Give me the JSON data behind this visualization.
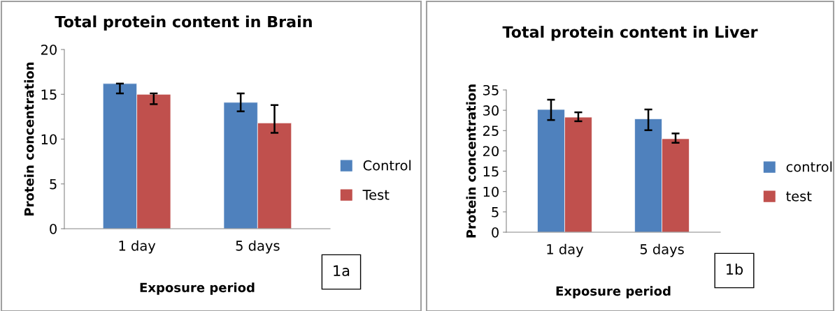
{
  "chart_data": [
    {
      "type": "bar",
      "title": "Total protein content in Brain",
      "xlabel": "Exposure period",
      "ylabel": "Protein concentration",
      "categories": [
        "1 day",
        "5 days"
      ],
      "series": [
        {
          "name": "Control",
          "color": "#4f81bd",
          "values": [
            16.2,
            14.1
          ],
          "errors": [
            [
              15.1,
              16.2
            ],
            [
              13.1,
              15.1
            ]
          ]
        },
        {
          "name": "Test",
          "color": "#c0504d",
          "values": [
            15.0,
            11.8
          ],
          "errors": [
            [
              13.9,
              15.1
            ],
            [
              10.7,
              13.8
            ]
          ]
        }
      ],
      "ylim": [
        0,
        20
      ],
      "yticks": [
        0,
        5,
        10,
        15,
        20
      ],
      "grid": false,
      "legend": "right",
      "annotations": [
        "1a"
      ]
    },
    {
      "type": "bar",
      "title": "Total protein content in Liver",
      "xlabel": "Exposure period",
      "ylabel": "Protein concentration",
      "categories": [
        "1 day",
        "5 days"
      ],
      "series": [
        {
          "name": "control",
          "color": "#4f81bd",
          "values": [
            30.2,
            27.9
          ],
          "errors": [
            [
              27.6,
              32.6
            ],
            [
              25.1,
              30.2
            ]
          ]
        },
        {
          "name": "test",
          "color": "#c0504d",
          "values": [
            28.3,
            23.0
          ],
          "errors": [
            [
              27.3,
              29.5
            ],
            [
              22.0,
              24.3
            ]
          ]
        }
      ],
      "ylim": [
        0,
        35
      ],
      "yticks": [
        0,
        5,
        10,
        15,
        20,
        25,
        30,
        35
      ],
      "grid": false,
      "legend": "right",
      "annotations": [
        "1b"
      ]
    }
  ]
}
